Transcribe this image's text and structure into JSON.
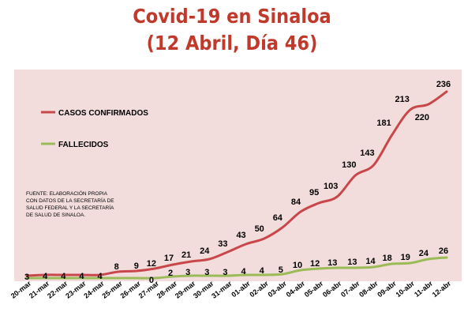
{
  "title_line1": "Covid-19 en Sinaloa",
  "title_line2": "(12 Abril, Día 46)",
  "source_lines": [
    "FUENTE: ELABORACIÓN PROPIA",
    "CON DATOS DE LA SECRETARÍA DE",
    "SALUD FEDERAL Y LA SECRETARÍA",
    "DE SALUD DE SINALOA."
  ],
  "colors": {
    "confirmed": "#c8474a",
    "deaths": "#9bbb59",
    "title": "#c0392b",
    "plot_bg": "#f2dcdc"
  },
  "chart_data": {
    "type": "line",
    "title": "Covid-19 en Sinaloa (12 Abril, Día 46)",
    "categories": [
      "20-mar",
      "21-mar",
      "22-mar",
      "23-mar",
      "24-mar",
      "25-mar",
      "26-mar",
      "27-mar",
      "28-mar",
      "29-mar",
      "30-mar",
      "31-mar",
      "01-abr",
      "02-abr",
      "03-abr",
      "04-abr",
      "05-abr",
      "06-abr",
      "07-abr",
      "08-abr",
      "09-abr",
      "10-abr",
      "11-abr",
      "12-abr"
    ],
    "series": [
      {
        "name": "CASOS CONFIRMADOS",
        "values": [
          3,
          4,
          4,
          4,
          4,
          8,
          9,
          12,
          17,
          21,
          24,
          33,
          43,
          50,
          64,
          84,
          95,
          103,
          130,
          143,
          181,
          213,
          220,
          236
        ]
      },
      {
        "name": "FALLECIDOS",
        "values": [
          0,
          0,
          0,
          0,
          0,
          0,
          0,
          0,
          2,
          3,
          3,
          3,
          4,
          4,
          5,
          10,
          12,
          13,
          13,
          14,
          18,
          19,
          24,
          26
        ]
      }
    ],
    "labels": {
      "confirmed": [
        "3",
        "4",
        "4",
        "4",
        "4",
        "8",
        "9",
        "12",
        "17",
        "21",
        "24",
        "33",
        "43",
        "50",
        "64",
        "84",
        "95",
        "103",
        "130",
        "143",
        "181",
        "213",
        "220",
        "236"
      ],
      "deaths": [
        null,
        null,
        null,
        null,
        null,
        null,
        null,
        "0",
        "2",
        "3",
        "3",
        "3",
        "4",
        "4",
        "5",
        "10",
        "12",
        "13",
        "13",
        "14",
        "18",
        "19",
        "24",
        "26"
      ]
    },
    "ylim": [
      0,
      250
    ],
    "legend_position": "top-left",
    "grid": false
  }
}
